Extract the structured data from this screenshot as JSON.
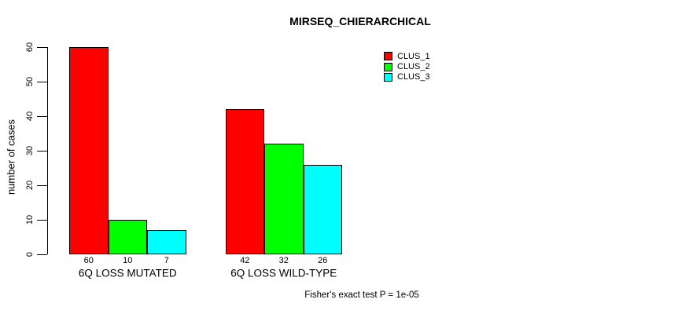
{
  "chart_data": {
    "type": "bar",
    "title": "MIRSEQ_CHIERARCHICAL",
    "ylabel": "number of cases",
    "xlabel": "",
    "footnote": "Fisher's exact test P = 1e-05",
    "categories": [
      "6Q LOSS MUTATED",
      "6Q LOSS WILD-TYPE"
    ],
    "series": [
      {
        "name": "CLUS_1",
        "color": "#FF0000",
        "values": [
          60,
          42
        ]
      },
      {
        "name": "CLUS_2",
        "color": "#00FF00",
        "values": [
          10,
          32
        ]
      },
      {
        "name": "CLUS_3",
        "color": "#00FFFF",
        "values": [
          7,
          26
        ]
      }
    ],
    "yticks": [
      0,
      10,
      20,
      30,
      40,
      50,
      60
    ],
    "ylim": [
      0,
      60
    ],
    "show_values_under_bars": true,
    "legend_position": "top-right",
    "grid": false
  },
  "colors": {
    "background": "#FFFFFF",
    "axis": "#000000",
    "text": "#000000"
  }
}
